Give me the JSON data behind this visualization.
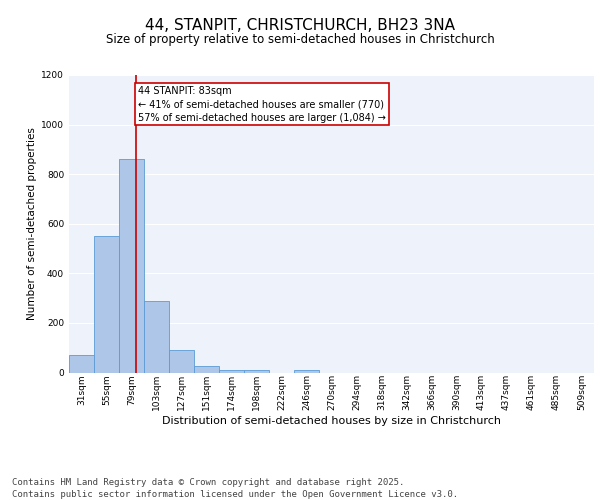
{
  "title1": "44, STANPIT, CHRISTCHURCH, BH23 3NA",
  "title2": "Size of property relative to semi-detached houses in Christchurch",
  "xlabel": "Distribution of semi-detached houses by size in Christchurch",
  "ylabel": "Number of semi-detached properties",
  "categories": [
    "31sqm",
    "55sqm",
    "79sqm",
    "103sqm",
    "127sqm",
    "151sqm",
    "174sqm",
    "198sqm",
    "222sqm",
    "246sqm",
    "270sqm",
    "294sqm",
    "318sqm",
    "342sqm",
    "366sqm",
    "390sqm",
    "413sqm",
    "437sqm",
    "461sqm",
    "485sqm",
    "509sqm"
  ],
  "values": [
    70,
    550,
    860,
    290,
    90,
    25,
    10,
    10,
    0,
    10,
    0,
    0,
    0,
    0,
    0,
    0,
    0,
    0,
    0,
    0,
    0
  ],
  "bar_color": "#aec6e8",
  "bar_edgecolor": "#5b9bd5",
  "vline_color": "#cc0000",
  "annotation_text": "44 STANPIT: 83sqm\n← 41% of semi-detached houses are smaller (770)\n57% of semi-detached houses are larger (1,084) →",
  "annotation_box_color": "#ffffff",
  "annotation_box_edgecolor": "#cc0000",
  "ylim": [
    0,
    1200
  ],
  "yticks": [
    0,
    200,
    400,
    600,
    800,
    1000,
    1200
  ],
  "background_color": "#eef2fa",
  "footer": "Contains HM Land Registry data © Crown copyright and database right 2025.\nContains public sector information licensed under the Open Government Licence v3.0.",
  "grid_color": "#ffffff",
  "title1_fontsize": 11,
  "title2_fontsize": 8.5,
  "ylabel_fontsize": 7.5,
  "xlabel_fontsize": 8,
  "tick_fontsize": 6.5,
  "annot_fontsize": 7,
  "footer_fontsize": 6.5
}
